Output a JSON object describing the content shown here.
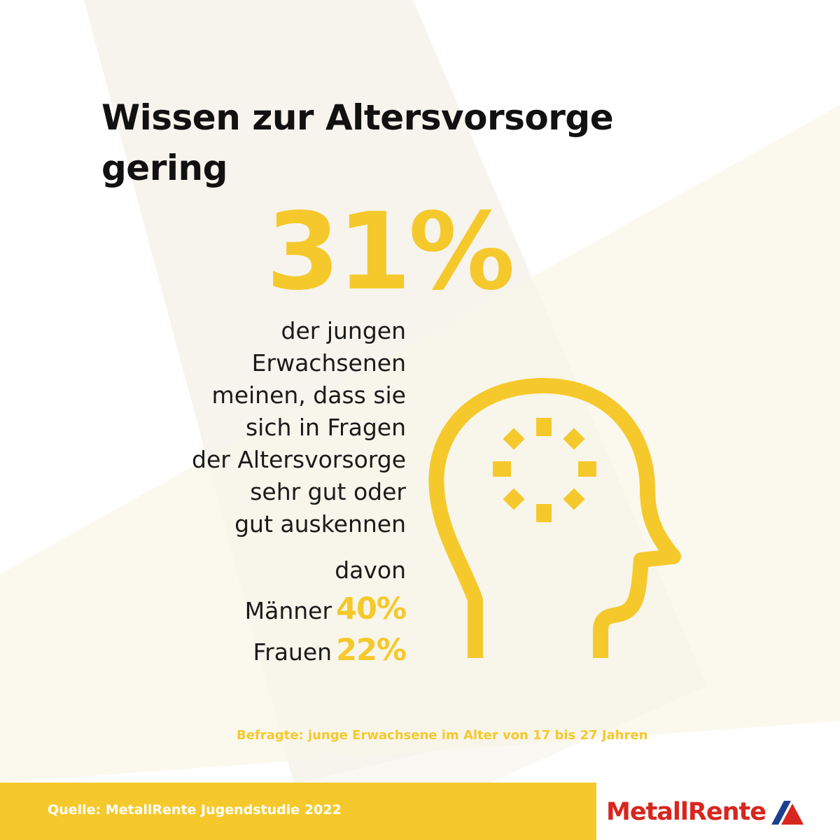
{
  "title": {
    "line1": "Wissen zur Altersvorsorge",
    "line2": "gering"
  },
  "headline_value": "31%",
  "description_lines": [
    "der jungen",
    "Erwachsenen",
    "meinen, dass sie",
    "sich in Fragen",
    "der Altersvorsorge",
    "sehr gut oder",
    "gut auskennen"
  ],
  "breakdown": {
    "intro": "davon",
    "rows": [
      {
        "label": "Männer",
        "value": "40%"
      },
      {
        "label": "Frauen",
        "value": "22%"
      }
    ]
  },
  "note": "Befragte: junge Erwachsene im Alter von 17 bis 27 Jahren",
  "source": "Quelle: MetallRente Jugendstudie 2022",
  "logo": {
    "text": "MetallRente",
    "icon": "metallrente-triangle-logo"
  },
  "colors": {
    "accent_yellow": "#f5c92b",
    "text_dark": "#111111",
    "logo_red": "#d7261e",
    "logo_blue": "#1c3f8f"
  },
  "icons": [
    "head-with-gear-icon"
  ]
}
